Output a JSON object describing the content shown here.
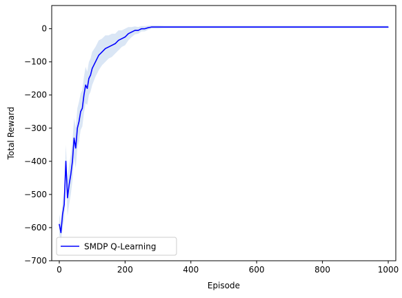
{
  "chart_data": {
    "type": "line",
    "xlabel": "Episode",
    "ylabel": "Total Reward",
    "xlim": [
      -23,
      1023
    ],
    "ylim": [
      -700,
      70
    ],
    "xticks": [
      0,
      200,
      400,
      600,
      800,
      1000
    ],
    "yticks": [
      -700,
      -600,
      -500,
      -400,
      -300,
      -200,
      -100,
      0
    ],
    "grid": false,
    "legend_position": "lower-left",
    "series": [
      {
        "name": "SMDP Q-Learning",
        "color": "#0000ff",
        "band_color": "#aec7e8",
        "x": [
          0,
          5,
          10,
          15,
          20,
          25,
          30,
          35,
          40,
          45,
          50,
          55,
          60,
          65,
          70,
          75,
          80,
          85,
          90,
          95,
          100,
          110,
          120,
          130,
          140,
          150,
          160,
          170,
          180,
          190,
          200,
          210,
          220,
          230,
          240,
          250,
          260,
          270,
          280,
          290,
          300,
          320,
          340,
          360,
          380,
          400,
          450,
          500,
          550,
          600,
          650,
          700,
          750,
          800,
          850,
          900,
          950,
          1000
        ],
        "y": [
          -590,
          -615,
          -560,
          -530,
          -400,
          -510,
          -470,
          -440,
          -400,
          -330,
          -360,
          -300,
          -280,
          -250,
          -240,
          -200,
          -170,
          -180,
          -150,
          -140,
          -120,
          -100,
          -80,
          -70,
          -60,
          -55,
          -50,
          -45,
          -35,
          -30,
          -25,
          -15,
          -10,
          -5,
          -5,
          0,
          0,
          3,
          5,
          5,
          5,
          5,
          5,
          5,
          5,
          5,
          5,
          5,
          5,
          5,
          5,
          5,
          5,
          5,
          5,
          5,
          5,
          5
        ],
        "band_half_width": [
          30,
          30,
          40,
          45,
          50,
          55,
          60,
          60,
          60,
          60,
          60,
          60,
          60,
          55,
          55,
          55,
          55,
          50,
          50,
          50,
          50,
          45,
          45,
          40,
          40,
          35,
          35,
          30,
          30,
          25,
          25,
          20,
          15,
          12,
          10,
          8,
          8,
          6,
          5,
          5,
          5,
          4,
          4,
          4,
          4,
          4,
          4,
          4,
          4,
          4,
          4,
          4,
          4,
          4,
          4,
          4,
          4,
          4
        ]
      }
    ]
  }
}
